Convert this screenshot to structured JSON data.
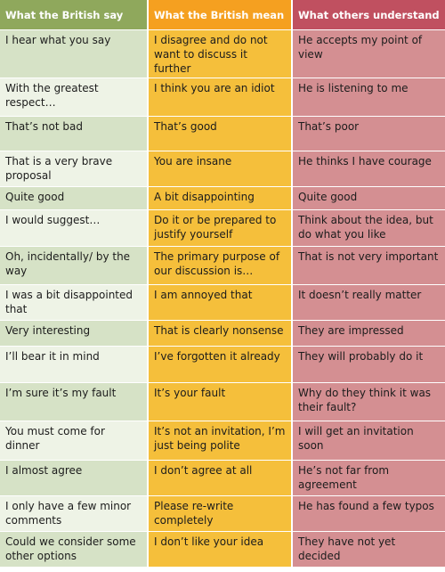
{
  "headers": [
    "What the British say",
    "What the British mean",
    "What others understand"
  ],
  "rows": [
    {
      "say": "I hear what you say",
      "mean": "I disagree and do not want to discuss it further",
      "understand": "He accepts my point of view"
    },
    {
      "say": "With the greatest respect…",
      "mean": "I think you are an idiot",
      "understand": "He is listening to me"
    },
    {
      "say": "That’s not bad",
      "mean": "That’s good",
      "understand": "That’s poor"
    },
    {
      "say": "That is a very brave proposal",
      "mean": "You are insane",
      "understand": "He thinks I have courage"
    },
    {
      "say": "Quite good",
      "mean": "A bit disappointing",
      "understand": "Quite good"
    },
    {
      "say": "I would suggest…",
      "mean": "Do it or be prepared to justify yourself",
      "understand": "Think about the idea, but do what you like"
    },
    {
      "say": "Oh, incidentally/ by the way",
      "mean": "The primary purpose of our discussion is…",
      "understand": "That is not very important"
    },
    {
      "say": "I was a bit disappointed that",
      "mean": "I am annoyed that",
      "understand": "It doesn’t really matter"
    },
    {
      "say": "Very interesting",
      "mean": "That is clearly nonsense",
      "understand": "They are impressed"
    },
    {
      "say": "I’ll bear it in mind",
      "mean": "I’ve forgotten it already",
      "understand": "They will probably do it"
    },
    {
      "say": "I’m sure it’s my fault",
      "mean": "It’s your fault",
      "understand": "Why do they think it was their fault?"
    },
    {
      "say": "You must come for dinner",
      "mean": "It’s not an invitation, I’m just being polite",
      "understand": "I will get an invitation soon"
    },
    {
      "say": "I almost agree",
      "mean": "I don’t agree at all",
      "understand": "He’s not far from agreement"
    },
    {
      "say": "I only have a few minor comments",
      "mean": "Please re-write completely",
      "understand": "He has found a few typos"
    },
    {
      "say": "Could we consider some other options",
      "mean": "I don’t like your idea",
      "understand": "They have not yet decided"
    }
  ],
  "colors": {
    "header_say": "#8fa85c",
    "header_mean": "#f5a020",
    "header_understand": "#c05060",
    "col_say_light": "#eef3e6",
    "col_say_dark": "#d6e2c6",
    "col_mean": "#f5bf3b",
    "col_understand": "#d48f92"
  }
}
